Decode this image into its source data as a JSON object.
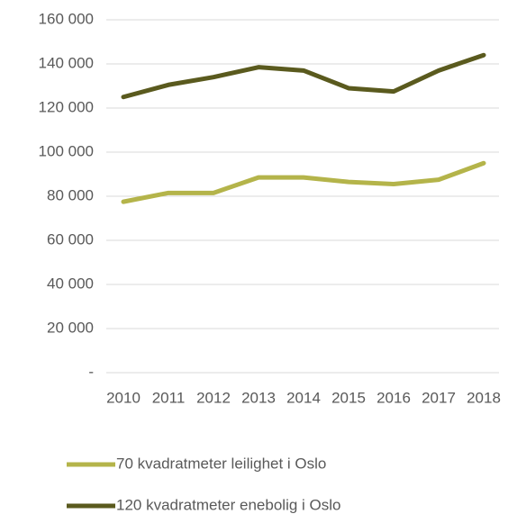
{
  "chart_data": {
    "type": "line",
    "categories": [
      "2010",
      "2011",
      "2012",
      "2013",
      "2014",
      "2015",
      "2016",
      "2017",
      "2018"
    ],
    "series": [
      {
        "name": "70 kvadratmeter leilighet i Oslo",
        "color": "#b4b44a",
        "values": [
          77500,
          81500,
          81500,
          88500,
          88500,
          86500,
          85500,
          87500,
          95000
        ]
      },
      {
        "name": "120 kvadratmeter enebolig i Oslo",
        "color": "#5a5a1e",
        "values": [
          125000,
          130500,
          134000,
          138500,
          137000,
          129000,
          127500,
          137000,
          144000
        ]
      }
    ],
    "ylim": [
      0,
      160000
    ],
    "yticks": [
      {
        "value": 0,
        "label": "-"
      },
      {
        "value": 20000,
        "label": "20 000"
      },
      {
        "value": 40000,
        "label": "40 000"
      },
      {
        "value": 60000,
        "label": "60 000"
      },
      {
        "value": 80000,
        "label": "80 000"
      },
      {
        "value": 100000,
        "label": "100 000"
      },
      {
        "value": 120000,
        "label": "120 000"
      },
      {
        "value": 140000,
        "label": "140 000"
      },
      {
        "value": 160000,
        "label": "160 000"
      }
    ],
    "grid": true,
    "legend": "bottom"
  }
}
